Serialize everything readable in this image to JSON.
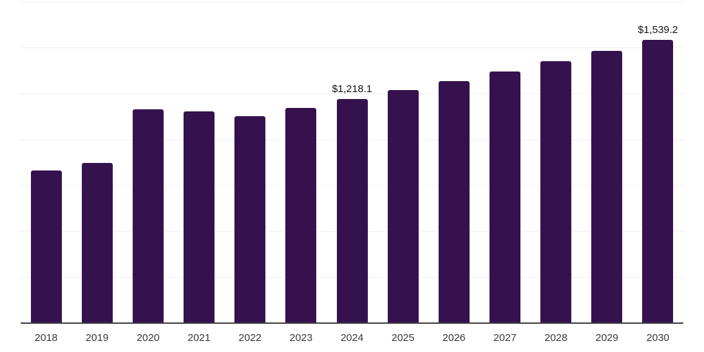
{
  "chart_data": {
    "type": "bar",
    "title": "",
    "xlabel": "",
    "ylabel": "",
    "categories": [
      "2018",
      "2019",
      "2020",
      "2021",
      "2022",
      "2023",
      "2024",
      "2025",
      "2026",
      "2027",
      "2028",
      "2029",
      "2030"
    ],
    "values": [
      832,
      873,
      1163,
      1152,
      1126,
      1171,
      1218.1,
      1266.6,
      1316.9,
      1369.3,
      1423.8,
      1480.4,
      1539.2
    ],
    "data_labels": {
      "2024": "$1,218.1",
      "2030": "$1,539.2"
    },
    "ylim": [
      0,
      1750
    ],
    "gridline_step": 250,
    "grid": "on",
    "legend": "none",
    "colors": {
      "bar": "#35124E",
      "gridline": "#EFEFEF",
      "axis_line": "#444444",
      "tick_label": "#3A3A3A",
      "data_label": "#111111",
      "background": "#FFFFFF"
    }
  }
}
